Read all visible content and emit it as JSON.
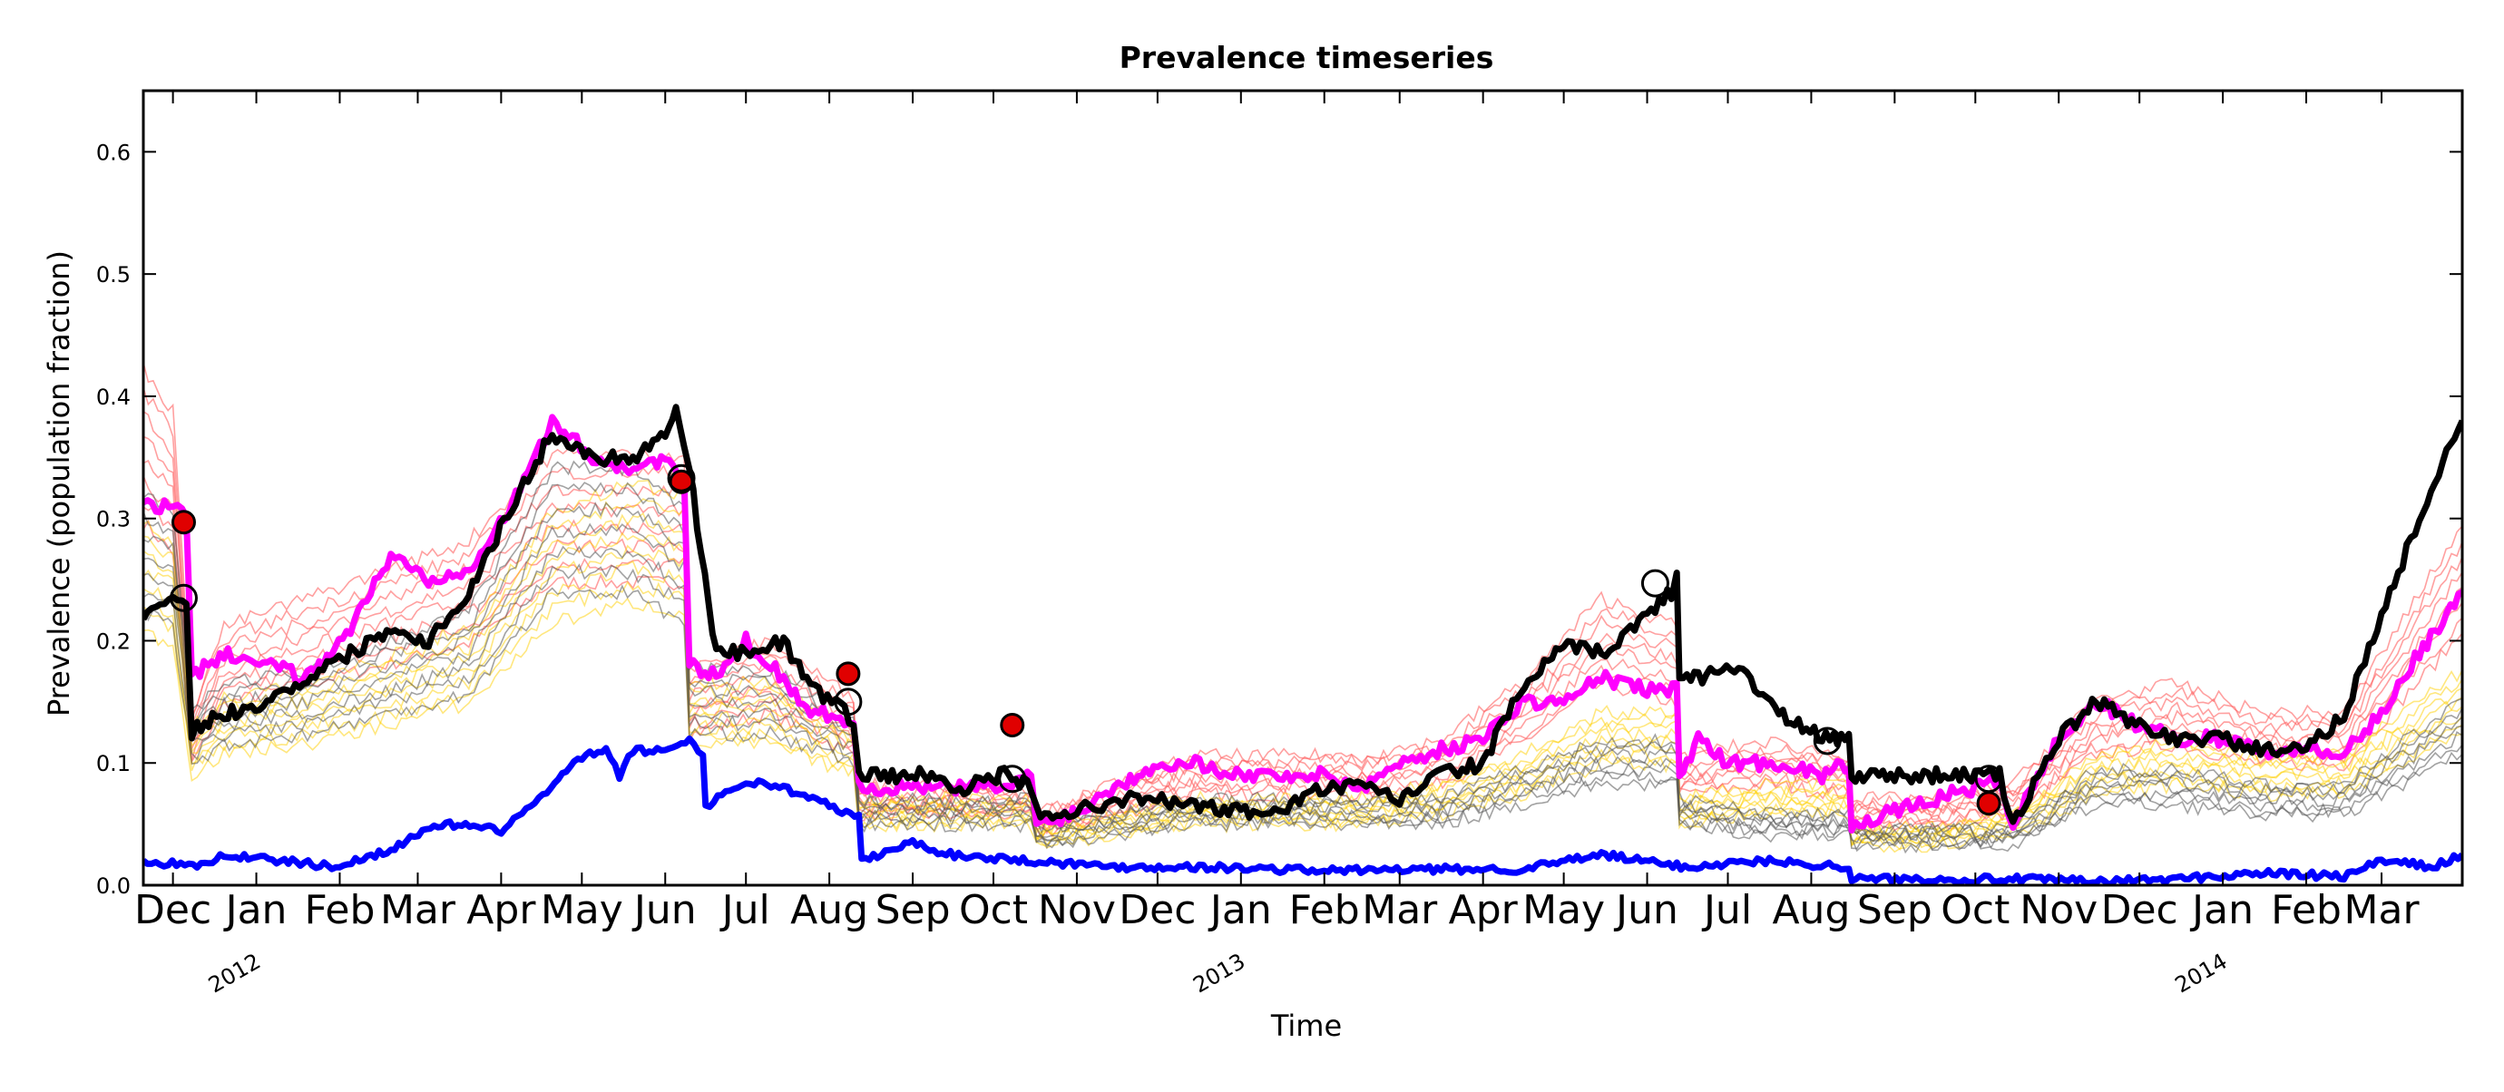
{
  "chart_data": {
    "type": "line",
    "title": "Prevalence timeseries",
    "xlabel": "Time",
    "ylabel": "Prevalence (population fraction)",
    "x_range": [
      "2011-11-20",
      "2014-03-31"
    ],
    "ylim": [
      0.0,
      0.65
    ],
    "y_ticks": [
      "0.0",
      "0.1",
      "0.2",
      "0.3",
      "0.4",
      "0.5",
      "0.6"
    ],
    "month_ticks": [
      {
        "date": "2011-12-01",
        "label": "Dec"
      },
      {
        "date": "2012-01-01",
        "label": "Jan"
      },
      {
        "date": "2012-02-01",
        "label": "Feb"
      },
      {
        "date": "2012-03-01",
        "label": "Mar"
      },
      {
        "date": "2012-04-01",
        "label": "Apr"
      },
      {
        "date": "2012-05-01",
        "label": "May"
      },
      {
        "date": "2012-06-01",
        "label": "Jun"
      },
      {
        "date": "2012-07-01",
        "label": "Jul"
      },
      {
        "date": "2012-08-01",
        "label": "Aug"
      },
      {
        "date": "2012-09-01",
        "label": "Sep"
      },
      {
        "date": "2012-10-01",
        "label": "Oct"
      },
      {
        "date": "2012-11-01",
        "label": "Nov"
      },
      {
        "date": "2012-12-01",
        "label": "Dec"
      },
      {
        "date": "2013-01-01",
        "label": "Jan"
      },
      {
        "date": "2013-02-01",
        "label": "Feb"
      },
      {
        "date": "2013-03-01",
        "label": "Mar"
      },
      {
        "date": "2013-04-01",
        "label": "Apr"
      },
      {
        "date": "2013-05-01",
        "label": "May"
      },
      {
        "date": "2013-06-01",
        "label": "Jun"
      },
      {
        "date": "2013-07-01",
        "label": "Jul"
      },
      {
        "date": "2013-08-01",
        "label": "Aug"
      },
      {
        "date": "2013-09-01",
        "label": "Sep"
      },
      {
        "date": "2013-10-01",
        "label": "Oct"
      },
      {
        "date": "2013-11-01",
        "label": "Nov"
      },
      {
        "date": "2013-12-01",
        "label": "Dec"
      },
      {
        "date": "2014-01-01",
        "label": "Jan"
      },
      {
        "date": "2014-02-01",
        "label": "Feb"
      },
      {
        "date": "2014-03-01",
        "label": "Mar"
      }
    ],
    "year_labels": [
      {
        "date": "2012-01-01",
        "label": "2012"
      },
      {
        "date": "2013-01-01",
        "label": "2013"
      },
      {
        "date": "2014-01-01",
        "label": "2014"
      }
    ],
    "grid": false,
    "legend": "none",
    "series": [
      {
        "color": "#000000",
        "x": [
          "2011-11-20",
          "2011-12-01",
          "2011-12-06",
          "2011-12-08",
          "2011-12-10",
          "2011-12-20",
          "2012-01-05",
          "2012-01-20",
          "2012-02-05",
          "2012-02-20",
          "2012-03-05",
          "2012-03-20",
          "2012-04-05",
          "2012-04-20",
          "2012-05-05",
          "2012-05-20",
          "2012-06-01",
          "2012-06-05",
          "2012-06-08",
          "2012-06-10",
          "2012-06-20",
          "2012-07-01",
          "2012-07-15",
          "2012-07-25",
          "2012-08-05",
          "2012-08-10",
          "2012-08-12",
          "2012-08-20",
          "2012-09-05",
          "2012-09-20",
          "2012-10-05",
          "2012-10-15",
          "2012-10-17",
          "2012-11-01",
          "2012-11-15",
          "2012-12-01",
          "2012-12-15",
          "2013-01-01",
          "2013-01-15",
          "2013-02-01",
          "2013-02-15",
          "2013-03-01",
          "2013-03-15",
          "2013-04-01",
          "2013-04-15",
          "2013-05-01",
          "2013-05-15",
          "2013-06-01",
          "2013-06-10",
          "2013-06-12",
          "2013-06-13",
          "2013-06-20",
          "2013-07-05",
          "2013-07-20",
          "2013-08-05",
          "2013-08-15",
          "2013-08-16",
          "2013-09-01",
          "2013-09-15",
          "2013-10-01",
          "2013-10-10",
          "2013-10-15",
          "2013-11-01",
          "2013-11-15",
          "2013-12-01",
          "2013-12-15",
          "2014-01-01",
          "2014-01-15",
          "2014-02-01",
          "2014-02-15",
          "2014-03-01",
          "2014-03-15",
          "2014-03-31"
        ],
        "y": [
          0.22,
          0.23,
          0.23,
          0.12,
          0.13,
          0.14,
          0.15,
          0.17,
          0.19,
          0.21,
          0.2,
          0.24,
          0.31,
          0.37,
          0.35,
          0.35,
          0.37,
          0.39,
          0.36,
          0.34,
          0.19,
          0.19,
          0.2,
          0.16,
          0.15,
          0.13,
          0.09,
          0.09,
          0.09,
          0.08,
          0.09,
          0.08,
          0.06,
          0.06,
          0.07,
          0.07,
          0.065,
          0.06,
          0.06,
          0.08,
          0.08,
          0.07,
          0.09,
          0.1,
          0.16,
          0.195,
          0.19,
          0.22,
          0.24,
          0.26,
          0.17,
          0.17,
          0.18,
          0.14,
          0.12,
          0.12,
          0.09,
          0.09,
          0.09,
          0.09,
          0.09,
          0.05,
          0.12,
          0.15,
          0.13,
          0.12,
          0.12,
          0.11,
          0.11,
          0.14,
          0.22,
          0.3,
          0.38
        ]
      },
      {
        "color": "#ff00ff",
        "x": [
          "2011-11-20",
          "2011-12-01",
          "2011-12-06",
          "2011-12-08",
          "2011-12-20",
          "2012-01-05",
          "2012-01-20",
          "2012-02-05",
          "2012-02-20",
          "2012-03-05",
          "2012-03-20",
          "2012-04-05",
          "2012-04-20",
          "2012-05-05",
          "2012-05-20",
          "2012-06-01",
          "2012-06-08",
          "2012-06-10",
          "2012-06-20",
          "2012-07-01",
          "2012-07-15",
          "2012-07-25",
          "2012-08-05",
          "2012-08-10",
          "2012-08-12",
          "2012-08-20",
          "2012-09-05",
          "2012-09-20",
          "2012-10-05",
          "2012-10-15",
          "2012-10-17",
          "2012-11-01",
          "2012-11-15",
          "2012-12-01",
          "2012-12-15",
          "2013-01-01",
          "2013-01-15",
          "2013-02-01",
          "2013-02-15",
          "2013-03-01",
          "2013-03-15",
          "2013-04-01",
          "2013-04-15",
          "2013-05-01",
          "2013-05-15",
          "2013-06-01",
          "2013-06-12",
          "2013-06-13",
          "2013-06-20",
          "2013-07-01",
          "2013-07-20",
          "2013-08-05",
          "2013-08-15",
          "2013-08-16",
          "2013-09-01",
          "2013-09-15",
          "2013-10-01",
          "2013-10-10",
          "2013-10-15",
          "2013-11-01",
          "2013-11-15",
          "2013-12-01",
          "2013-12-15",
          "2014-01-01",
          "2014-01-15",
          "2014-02-01",
          "2014-02-15",
          "2014-03-01",
          "2014-03-15",
          "2014-03-31"
        ],
        "y": [
          0.31,
          0.31,
          0.3,
          0.17,
          0.19,
          0.18,
          0.17,
          0.21,
          0.27,
          0.25,
          0.26,
          0.31,
          0.38,
          0.35,
          0.34,
          0.35,
          0.33,
          0.18,
          0.17,
          0.2,
          0.17,
          0.14,
          0.14,
          0.13,
          0.08,
          0.08,
          0.08,
          0.08,
          0.08,
          0.09,
          0.05,
          0.06,
          0.08,
          0.1,
          0.1,
          0.09,
          0.09,
          0.09,
          0.08,
          0.1,
          0.11,
          0.12,
          0.15,
          0.15,
          0.17,
          0.16,
          0.16,
          0.09,
          0.12,
          0.1,
          0.1,
          0.09,
          0.1,
          0.05,
          0.06,
          0.07,
          0.08,
          0.085,
          0.05,
          0.12,
          0.15,
          0.13,
          0.12,
          0.12,
          0.11,
          0.11,
          0.11,
          0.14,
          0.19,
          0.24
        ]
      },
      {
        "color": "#0000ff",
        "x": [
          "2011-11-20",
          "2011-12-10",
          "2011-12-20",
          "2012-01-10",
          "2012-02-01",
          "2012-02-20",
          "2012-03-10",
          "2012-04-01",
          "2012-04-15",
          "2012-05-01",
          "2012-05-10",
          "2012-05-15",
          "2012-05-20",
          "2012-06-01",
          "2012-06-10",
          "2012-06-15",
          "2012-06-16",
          "2012-07-01",
          "2012-07-15",
          "2012-08-01",
          "2012-08-12",
          "2012-08-13",
          "2012-09-01",
          "2012-09-15",
          "2012-10-15",
          "2012-11-15",
          "2012-12-15",
          "2013-02-01",
          "2013-03-15",
          "2013-04-15",
          "2013-05-15",
          "2013-06-15",
          "2013-07-15",
          "2013-08-15",
          "2013-08-16",
          "2013-09-15",
          "2013-10-15",
          "2013-11-15",
          "2013-12-15",
          "2014-01-15",
          "2014-02-15",
          "2014-03-01",
          "2014-03-20",
          "2014-03-31"
        ],
        "y": [
          0.02,
          0.015,
          0.025,
          0.02,
          0.015,
          0.03,
          0.05,
          0.045,
          0.07,
          0.105,
          0.11,
          0.09,
          0.11,
          0.11,
          0.12,
          0.105,
          0.065,
          0.085,
          0.08,
          0.065,
          0.055,
          0.02,
          0.035,
          0.025,
          0.02,
          0.015,
          0.015,
          0.012,
          0.013,
          0.013,
          0.025,
          0.015,
          0.02,
          0.015,
          0.005,
          0.005,
          0.005,
          0.003,
          0.005,
          0.01,
          0.007,
          0.02,
          0.015,
          0.025
        ]
      }
    ],
    "ensemble_bands": [
      {
        "color": "#ff6060",
        "stroke_opacity": 0.6,
        "count": 8,
        "x": [
          "2011-11-20",
          "2011-12-01",
          "2011-12-08",
          "2011-12-20",
          "2012-01-20",
          "2012-02-20",
          "2012-03-20",
          "2012-04-20",
          "2012-05-20",
          "2012-06-08",
          "2012-06-10",
          "2012-07-10",
          "2012-08-10",
          "2012-08-12",
          "2012-09-15",
          "2012-10-15",
          "2012-10-17",
          "2012-11-15",
          "2012-12-15",
          "2013-01-15",
          "2013-02-15",
          "2013-03-15",
          "2013-04-15",
          "2013-05-15",
          "2013-06-12",
          "2013-06-13",
          "2013-07-15",
          "2013-08-15",
          "2013-08-16",
          "2013-09-15",
          "2013-10-15",
          "2013-11-15",
          "2013-12-15",
          "2014-01-15",
          "2014-02-15",
          "2014-03-31"
        ],
        "y": [
          0.36,
          0.33,
          0.12,
          0.18,
          0.2,
          0.22,
          0.24,
          0.3,
          0.3,
          0.3,
          0.15,
          0.17,
          0.13,
          0.07,
          0.07,
          0.07,
          0.05,
          0.07,
          0.09,
          0.09,
          0.09,
          0.1,
          0.14,
          0.2,
          0.18,
          0.09,
          0.1,
          0.09,
          0.06,
          0.06,
          0.07,
          0.13,
          0.14,
          0.12,
          0.12,
          0.25
        ]
      },
      {
        "color": "#ffd000",
        "stroke_opacity": 0.5,
        "count": 8,
        "x": [
          "2011-11-20",
          "2011-12-01",
          "2011-12-08",
          "2011-12-20",
          "2012-01-20",
          "2012-02-20",
          "2012-03-20",
          "2012-04-20",
          "2012-05-20",
          "2012-06-08",
          "2012-06-10",
          "2012-07-10",
          "2012-08-10",
          "2012-08-12",
          "2012-09-15",
          "2012-10-15",
          "2012-10-17",
          "2012-11-15",
          "2012-12-15",
          "2013-01-15",
          "2013-02-15",
          "2013-03-15",
          "2013-04-15",
          "2013-05-15",
          "2013-06-12",
          "2013-06-13",
          "2013-07-15",
          "2013-08-15",
          "2013-08-16",
          "2013-09-15",
          "2013-10-15",
          "2013-11-15",
          "2013-12-15",
          "2014-01-15",
          "2014-02-15",
          "2014-03-31"
        ],
        "y": [
          0.25,
          0.24,
          0.11,
          0.13,
          0.14,
          0.16,
          0.18,
          0.26,
          0.28,
          0.27,
          0.14,
          0.14,
          0.11,
          0.06,
          0.06,
          0.06,
          0.04,
          0.05,
          0.06,
          0.06,
          0.06,
          0.07,
          0.09,
          0.12,
          0.12,
          0.06,
          0.07,
          0.07,
          0.04,
          0.04,
          0.05,
          0.09,
          0.1,
          0.09,
          0.09,
          0.15
        ]
      },
      {
        "color": "#555555",
        "stroke_opacity": 0.55,
        "count": 7,
        "x": [
          "2011-11-20",
          "2011-12-01",
          "2011-12-08",
          "2011-12-20",
          "2012-01-20",
          "2012-02-20",
          "2012-03-20",
          "2012-04-20",
          "2012-05-20",
          "2012-06-08",
          "2012-06-10",
          "2012-07-10",
          "2012-08-10",
          "2012-08-12",
          "2012-09-15",
          "2012-10-15",
          "2012-10-17",
          "2012-11-15",
          "2012-12-15",
          "2013-01-15",
          "2013-02-15",
          "2013-03-15",
          "2013-04-15",
          "2013-05-15",
          "2013-06-12",
          "2013-06-13",
          "2013-07-15",
          "2013-08-15",
          "2013-08-16",
          "2013-09-15",
          "2013-10-15",
          "2013-11-15",
          "2013-12-15",
          "2014-01-15",
          "2014-02-15",
          "2014-03-31"
        ],
        "y": [
          0.27,
          0.26,
          0.12,
          0.14,
          0.15,
          0.17,
          0.19,
          0.29,
          0.29,
          0.26,
          0.15,
          0.15,
          0.12,
          0.06,
          0.06,
          0.06,
          0.04,
          0.05,
          0.06,
          0.06,
          0.06,
          0.06,
          0.08,
          0.1,
          0.1,
          0.06,
          0.05,
          0.05,
          0.04,
          0.04,
          0.04,
          0.08,
          0.08,
          0.07,
          0.07,
          0.13
        ]
      }
    ],
    "markers": [
      {
        "kind": "filled",
        "color": "#e00000",
        "date": "2011-12-05",
        "value": 0.297
      },
      {
        "kind": "hollow",
        "date": "2011-12-05",
        "value": 0.235
      },
      {
        "kind": "filled",
        "color": "#e00000",
        "date": "2012-06-07",
        "value": 0.33
      },
      {
        "kind": "hollow",
        "date": "2012-06-07",
        "value": 0.333
      },
      {
        "kind": "filled",
        "color": "#e00000",
        "date": "2012-08-08",
        "value": 0.173
      },
      {
        "kind": "hollow",
        "date": "2012-08-08",
        "value": 0.15
      },
      {
        "kind": "filled",
        "color": "#e00000",
        "date": "2012-10-08",
        "value": 0.131
      },
      {
        "kind": "hollow",
        "date": "2012-10-08",
        "value": 0.087
      },
      {
        "kind": "hollow",
        "date": "2013-06-04",
        "value": 0.247
      },
      {
        "kind": "hollow",
        "date": "2013-08-07",
        "value": 0.118
      },
      {
        "kind": "filled",
        "color": "#e00000",
        "date": "2013-10-06",
        "value": 0.067
      },
      {
        "kind": "hollow",
        "date": "2013-10-06",
        "value": 0.087
      }
    ]
  }
}
